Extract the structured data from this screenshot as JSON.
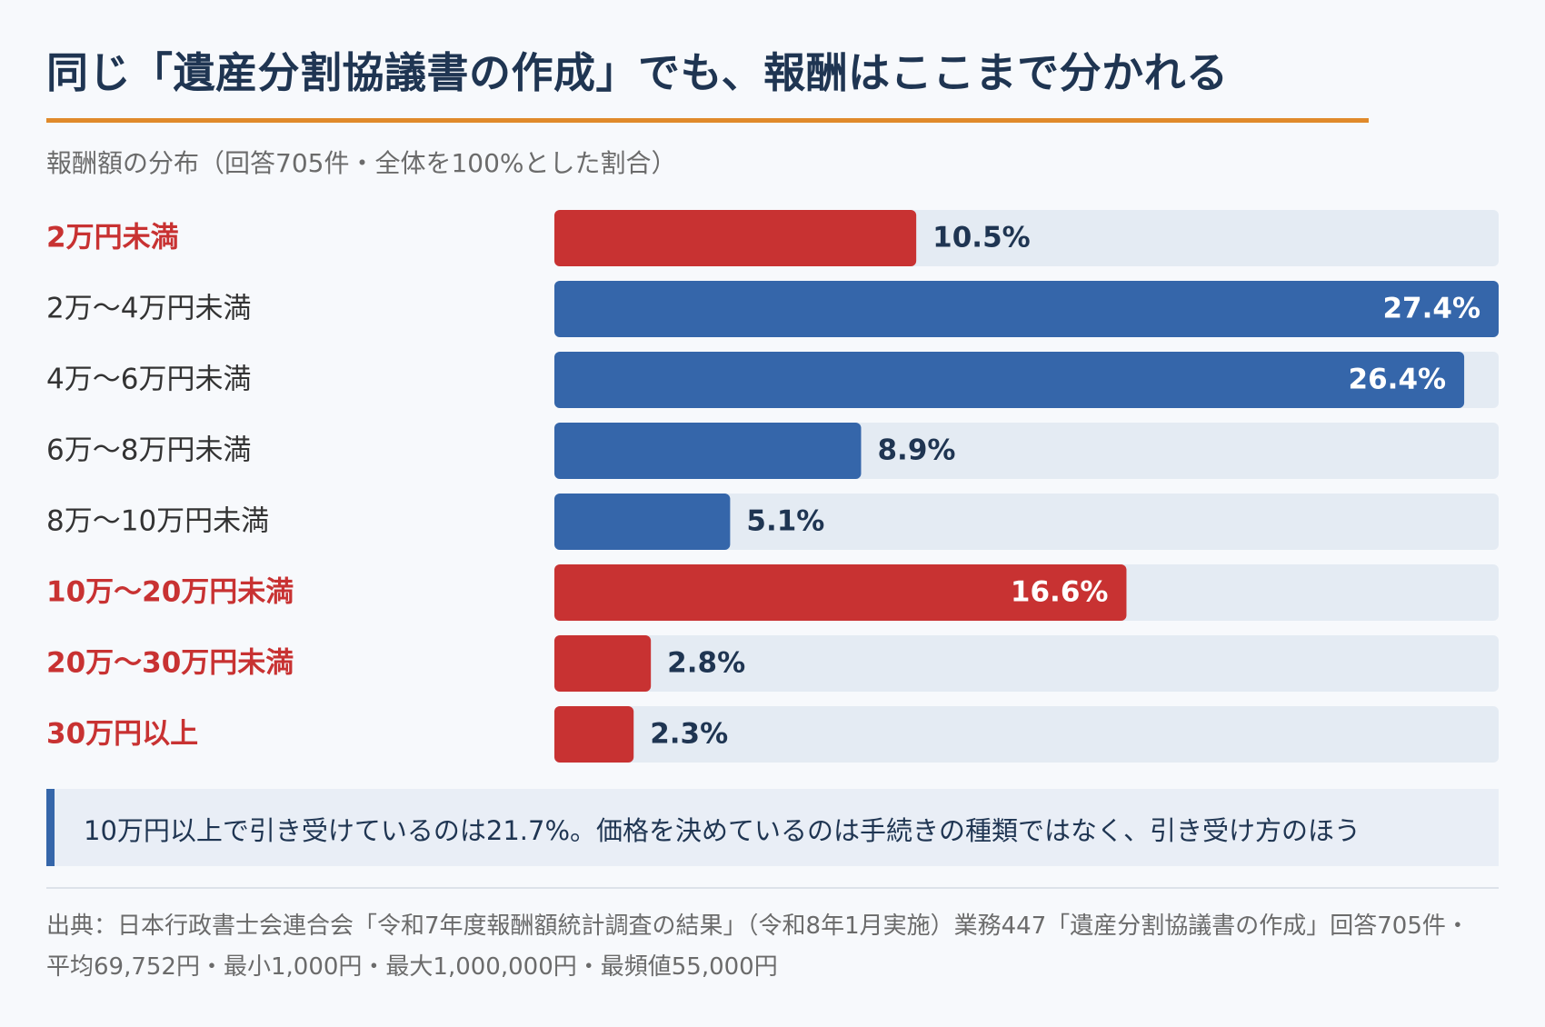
{
  "title": "同じ「遺産分割協議書の作成」でも、報酬はここまで分かれる",
  "subtitle": "報酬額の分布（回答705件・全体を100%とした割合）",
  "colors": {
    "accent_red": "#c83232",
    "accent_blue": "#3566aa",
    "track": "#e4ebf3",
    "title_rule": "#e08a2b",
    "label_dark": "#1f3552",
    "label_gray": "#333333"
  },
  "chart_data": {
    "type": "bar",
    "orientation": "horizontal",
    "categories": [
      "2万円未満",
      "2万～4万円未満",
      "4万～6万円未満",
      "6万～8万円未満",
      "8万～10万円未満",
      "10万～20万円未満",
      "20万～30万円未満",
      "30万円以上"
    ],
    "values": [
      10.5,
      27.4,
      26.4,
      8.9,
      5.1,
      16.6,
      2.8,
      2.3
    ],
    "value_labels": [
      "10.5%",
      "27.4%",
      "26.4%",
      "8.9%",
      "5.1%",
      "16.6%",
      "2.8%",
      "2.3%"
    ],
    "highlighted": [
      true,
      false,
      false,
      false,
      false,
      true,
      true,
      true
    ],
    "xlim": [
      0,
      27.4
    ],
    "grid": false,
    "legend": "none"
  },
  "note": "10万円以上で引き受けているのは21.7%。価格を決めているのは手続きの種類ではなく、引き受け方のほう",
  "source": "出典：日本行政書士会連合会「令和7年度報酬額統計調査の結果」（令和8年1月実施）業務447「遺産分割協議書の作成」回答705件・平均69,752円・最小1,000円・最大1,000,000円・最頻値55,000円"
}
